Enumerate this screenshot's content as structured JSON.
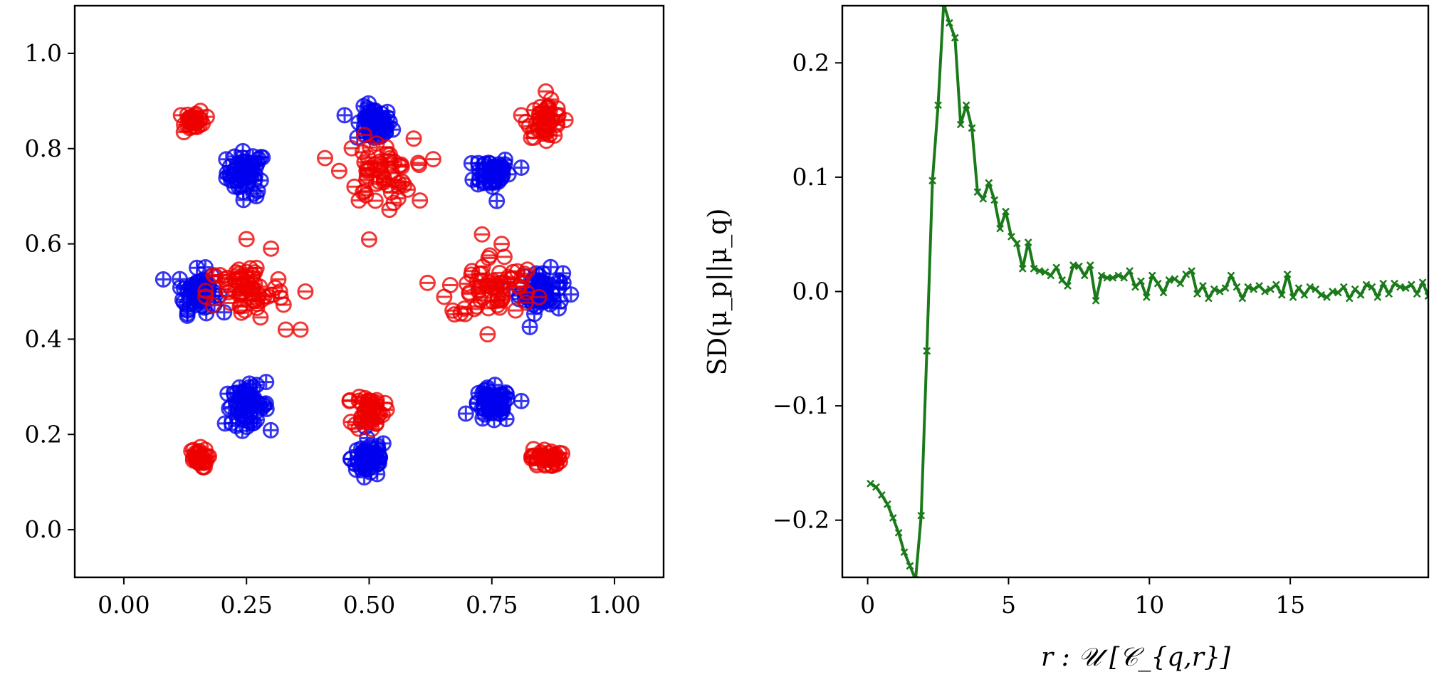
{
  "chart_data": [
    {
      "type": "scatter",
      "title": "",
      "xlabel": "",
      "ylabel": "",
      "xlim": [
        -0.1,
        1.1
      ],
      "ylim": [
        -0.1,
        1.1
      ],
      "xticks": [
        "0.00",
        "0.25",
        "0.50",
        "0.75",
        "1.00"
      ],
      "yticks": [
        "0.0",
        "0.2",
        "0.4",
        "0.6",
        "0.8",
        "1.0"
      ],
      "marker_note": "positive samples drawn with ⊕, negative samples drawn with ⊖",
      "series": [
        {
          "name": "positive",
          "marker": "circle-plus",
          "color": "#0000ee",
          "clusters": [
            {
              "cx": 0.25,
              "cy": 0.75,
              "sx": 0.02,
              "sy": 0.022,
              "n": 55,
              "outliers": [
                [
                  0.27,
                  0.7
                ]
              ]
            },
            {
              "cx": 0.51,
              "cy": 0.85,
              "sx": 0.018,
              "sy": 0.018,
              "n": 55,
              "outliers": [
                [
                  0.45,
                  0.87
                ]
              ]
            },
            {
              "cx": 0.75,
              "cy": 0.75,
              "sx": 0.018,
              "sy": 0.018,
              "n": 50,
              "outliers": [
                [
                  0.76,
                  0.69
                ],
                [
                  0.81,
                  0.76
                ]
              ]
            },
            {
              "cx": 0.15,
              "cy": 0.5,
              "sx": 0.02,
              "sy": 0.022,
              "n": 55,
              "outliers": [
                [
                  0.13,
                  0.46
                ]
              ]
            },
            {
              "cx": 0.85,
              "cy": 0.5,
              "sx": 0.022,
              "sy": 0.022,
              "n": 55,
              "outliers": [
                [
                  0.89,
                  0.48
                ]
              ]
            },
            {
              "cx": 0.25,
              "cy": 0.26,
              "sx": 0.022,
              "sy": 0.02,
              "n": 60,
              "outliers": [
                [
                  0.29,
                  0.31
                ]
              ]
            },
            {
              "cx": 0.5,
              "cy": 0.15,
              "sx": 0.018,
              "sy": 0.02,
              "n": 55,
              "outliers": [
                [
                  0.49,
                  0.11
                ]
              ]
            },
            {
              "cx": 0.75,
              "cy": 0.26,
              "sx": 0.02,
              "sy": 0.018,
              "n": 55,
              "outliers": [
                [
                  0.81,
                  0.27
                ]
              ]
            }
          ]
        },
        {
          "name": "negative",
          "marker": "circle-minus",
          "color": "#ee0000",
          "clusters": [
            {
              "cx": 0.145,
              "cy": 0.86,
              "sx": 0.01,
              "sy": 0.01,
              "n": 35,
              "outliers": []
            },
            {
              "cx": 0.86,
              "cy": 0.86,
              "sx": 0.018,
              "sy": 0.018,
              "n": 45,
              "outliers": [
                [
                  0.86,
                  0.92
                ],
                [
                  0.81,
                  0.87
                ],
                [
                  0.9,
                  0.86
                ]
              ]
            },
            {
              "cx": 0.52,
              "cy": 0.75,
              "sx": 0.035,
              "sy": 0.035,
              "n": 55,
              "outliers": [
                [
                  0.41,
                  0.78
                ],
                [
                  0.6,
                  0.77
                ],
                [
                  0.56,
                  0.72
                ],
                [
                  0.47,
                  0.72
                ]
              ]
            },
            {
              "cx": 0.25,
              "cy": 0.5,
              "sx": 0.04,
              "sy": 0.03,
              "n": 65,
              "outliers": [
                [
                  0.25,
                  0.61
                ],
                [
                  0.3,
                  0.59
                ],
                [
                  0.37,
                  0.5
                ],
                [
                  0.33,
                  0.42
                ],
                [
                  0.36,
                  0.42
                ]
              ]
            },
            {
              "cx": 0.75,
              "cy": 0.51,
              "sx": 0.045,
              "sy": 0.035,
              "n": 65,
              "outliers": [
                [
                  0.67,
                  0.46
                ],
                [
                  0.77,
                  0.6
                ],
                [
                  0.73,
                  0.62
                ]
              ]
            },
            {
              "cx": 0.5,
              "cy": 0.25,
              "sx": 0.015,
              "sy": 0.02,
              "n": 45,
              "outliers": [
                [
                  0.46,
                  0.27
                ]
              ]
            },
            {
              "cx": 0.15,
              "cy": 0.15,
              "sx": 0.01,
              "sy": 0.01,
              "n": 35,
              "outliers": []
            },
            {
              "cx": 0.86,
              "cy": 0.15,
              "sx": 0.015,
              "sy": 0.01,
              "n": 40,
              "outliers": []
            }
          ]
        }
      ]
    },
    {
      "type": "line",
      "title": "",
      "xlabel": "r : 𝒰 [𝒞_{q,r}]",
      "ylabel": "SD(μ_p||μ_q)",
      "xlim": [
        -0.9,
        19.9
      ],
      "ylim": [
        -0.25,
        0.25
      ],
      "xticks": [
        "0",
        "5",
        "10",
        "15"
      ],
      "yticks": [
        "−0.2",
        "−0.1",
        "0.0",
        "0.1",
        "0.2"
      ],
      "series": [
        {
          "name": "SD",
          "color": "#1a7a1a",
          "x": [
            0.1,
            0.3,
            0.5,
            0.7,
            0.9,
            1.1,
            1.3,
            1.5,
            1.7,
            1.9,
            2.1,
            2.3,
            2.5,
            2.7,
            2.9,
            3.1,
            3.3,
            3.5,
            3.7,
            3.9,
            4.1,
            4.3,
            4.5,
            4.7,
            4.9,
            5.1,
            5.3,
            5.5,
            5.7,
            5.9,
            6.1,
            6.3,
            6.5,
            6.7,
            6.9,
            7.1,
            7.3,
            7.5,
            7.7,
            7.9,
            8.1,
            8.3,
            8.5,
            8.7,
            8.9,
            9.1,
            9.3,
            9.5,
            9.7,
            9.9,
            10.1,
            10.3,
            10.5,
            10.7,
            10.9,
            11.1,
            11.3,
            11.5,
            11.7,
            11.9,
            12.1,
            12.3,
            12.5,
            12.7,
            12.9,
            13.1,
            13.3,
            13.5,
            13.7,
            13.9,
            14.1,
            14.3,
            14.5,
            14.7,
            14.9,
            15.1,
            15.3,
            15.5,
            15.7,
            15.9,
            16.1,
            16.3,
            16.5,
            16.7,
            16.9,
            17.1,
            17.3,
            17.5,
            17.7,
            17.9,
            18.1,
            18.3,
            18.5,
            18.7,
            18.9,
            19.1,
            19.3,
            19.5,
            19.7,
            19.9
          ],
          "y": [
            -0.168,
            -0.171,
            -0.178,
            -0.186,
            -0.198,
            -0.211,
            -0.228,
            -0.24,
            -0.252,
            -0.196,
            -0.052,
            0.097,
            0.163,
            0.252,
            0.235,
            0.222,
            0.146,
            0.163,
            0.143,
            0.087,
            0.081,
            0.095,
            0.08,
            0.055,
            0.07,
            0.048,
            0.042,
            0.02,
            0.043,
            0.02,
            0.018,
            0.017,
            0.014,
            0.021,
            0.01,
            0.005,
            0.023,
            0.022,
            0.014,
            0.023,
            -0.008,
            0.014,
            0.012,
            0.012,
            0.014,
            0.012,
            0.018,
            0.004,
            0.009,
            -0.005,
            0.014,
            0.007,
            -0.001,
            0.01,
            0.011,
            0.007,
            0.015,
            0.018,
            -0.002,
            0.005,
            -0.006,
            0.002,
            0.0,
            0.003,
            0.014,
            0.004,
            -0.006,
            0.004,
            0.002,
            0.005,
            0.0,
            0.002,
            0.006,
            -0.003,
            0.015,
            -0.005,
            0.003,
            -0.003,
            0.004,
            0.002,
            -0.003,
            -0.005,
            0.0,
            -0.001,
            0.004,
            -0.006,
            0.002,
            -0.003,
            0.006,
            0.004,
            -0.005,
            0.007,
            -0.002,
            0.007,
            0.004,
            0.003,
            0.006,
            -0.002,
            0.008,
            -0.004
          ]
        }
      ]
    }
  ]
}
